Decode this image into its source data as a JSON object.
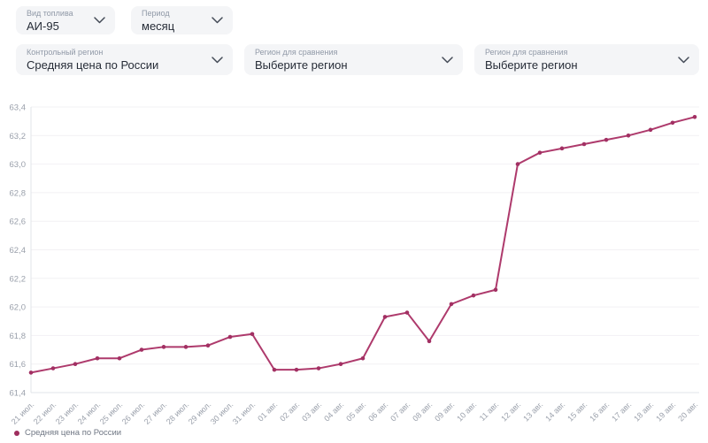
{
  "filters": {
    "row1": [
      {
        "label": "Вид топлива",
        "value": "АИ-95"
      },
      {
        "label": "Период",
        "value": "месяц"
      }
    ],
    "row2": [
      {
        "label": "Контрольный регион",
        "value": "Средняя цена по России"
      },
      {
        "label": "Регион для сравнения",
        "value": "Выберите регион"
      },
      {
        "label": "Регион для сравнения",
        "value": "Выберите регион"
      }
    ]
  },
  "chart_data": {
    "type": "line",
    "title": "",
    "xlabel": "",
    "ylabel": "",
    "x": [
      "21 июл.",
      "22 июл.",
      "23 июл.",
      "24 июл.",
      "25 июл.",
      "26 июл.",
      "27 июл.",
      "28 июл.",
      "29 июл.",
      "30 июл.",
      "31 июл.",
      "01 авг.",
      "02 авг.",
      "03 авг.",
      "04 авг.",
      "05 авг.",
      "06 авг.",
      "07 авг.",
      "08 авг.",
      "09 авг.",
      "10 авг.",
      "11 авг.",
      "12 авг.",
      "13 авг.",
      "14 авг.",
      "15 авг.",
      "16 авг.",
      "17 авг.",
      "18 авг.",
      "19 авг.",
      "20 авг."
    ],
    "series": [
      {
        "name": "Средняя цена по России",
        "color": "#ae3a6c",
        "point_color": "#a23063",
        "values": [
          61.54,
          61.57,
          61.6,
          61.64,
          61.64,
          61.7,
          61.72,
          61.72,
          61.73,
          61.79,
          61.81,
          61.56,
          61.56,
          61.57,
          61.6,
          61.64,
          61.93,
          61.96,
          61.76,
          62.02,
          62.08,
          62.12,
          63.0,
          63.08,
          63.11,
          63.14,
          63.17,
          63.2,
          63.24,
          63.29,
          63.33
        ]
      }
    ],
    "ylim": [
      61.4,
      63.4
    ],
    "ytick_step": 0.2,
    "ytick_labels": [
      "63,4",
      "63,2",
      "63,0",
      "62,8",
      "62,6",
      "62,4",
      "62,2",
      "62,0",
      "61,8",
      "61,6",
      "61,4"
    ],
    "decimal_separator": ",",
    "grid": true,
    "legend_position": "bottom-left"
  },
  "legend": {
    "items": [
      {
        "label": "Средняя цена по России",
        "color": "#9e2e5e"
      }
    ]
  },
  "colors": {
    "accent_line": "#ae3a6c",
    "legend_dot": "#9e2e5e",
    "grid": "#f2f1f4",
    "axis": "#e2e4e8",
    "tick_text": "#9aa0ab",
    "dropdown_bg": "#f4f5f7",
    "dropdown_label": "#9099a7",
    "dropdown_value": "#262c37"
  }
}
